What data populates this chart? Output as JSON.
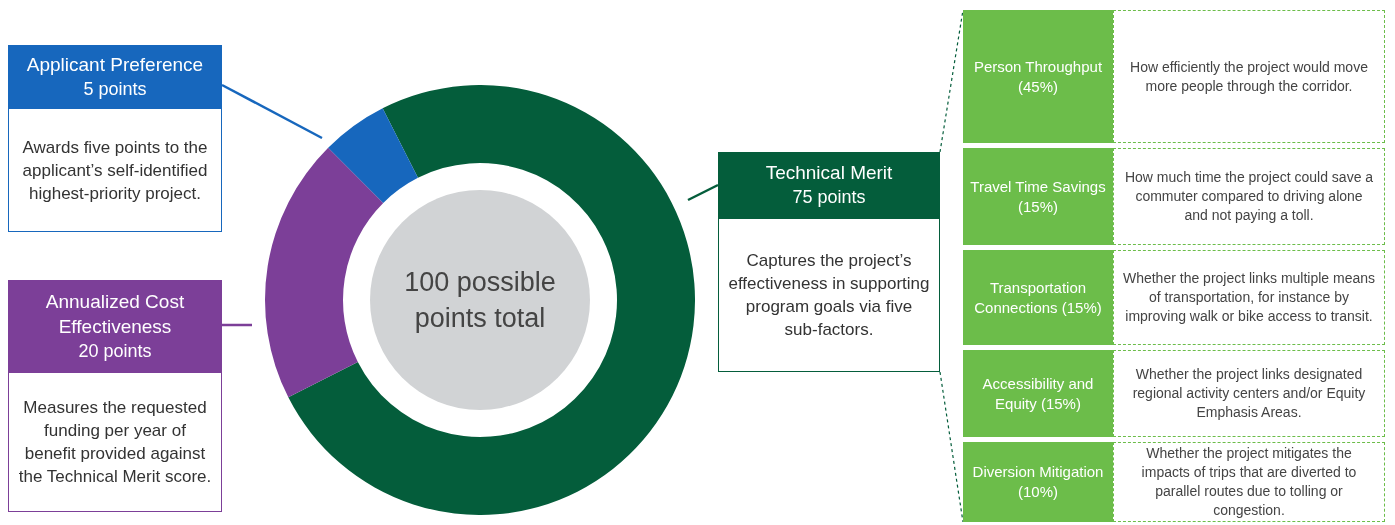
{
  "chart_data": {
    "type": "donut",
    "categories": [
      "Technical Merit",
      "Annualized Cost Effectiveness",
      "Applicant Preference"
    ],
    "values": [
      75,
      20,
      5
    ],
    "colors": [
      "#045d3b",
      "#7c3f98",
      "#1767bd"
    ],
    "value_labels": [
      "75 points",
      "20 points",
      "5 points"
    ],
    "legend": "left",
    "annotations": [
      "100 possible points total",
      "Captures the project’s effectiveness in supporting program goals via five sub-factors.",
      "Measures the requested funding per year of benefit provided against the Technical Merit score.",
      "Awards five points to the applicant’s self-identified highest-priority project.",
      "Person Throughput (45%)",
      "How efficiently the project would move more people through the corridor.",
      "Travel Time Savings (15%)",
      "How much time the project could save a commuter compared to driving alone and not paying a toll.",
      "Transportation Connections (15%)",
      "Whether the project links multiple means of transportation, for instance by improving walk or bike access to transit.",
      "Accessibility and Equity (15%)",
      "Whether the project links designated regional activity centers and/or Equity Emphasis Areas.",
      "Diversion Mitigation (10%)",
      "Whether the project mitigates the impacts of trips that are diverted to parallel routes due to tolling or congestion."
    ]
  }
}
